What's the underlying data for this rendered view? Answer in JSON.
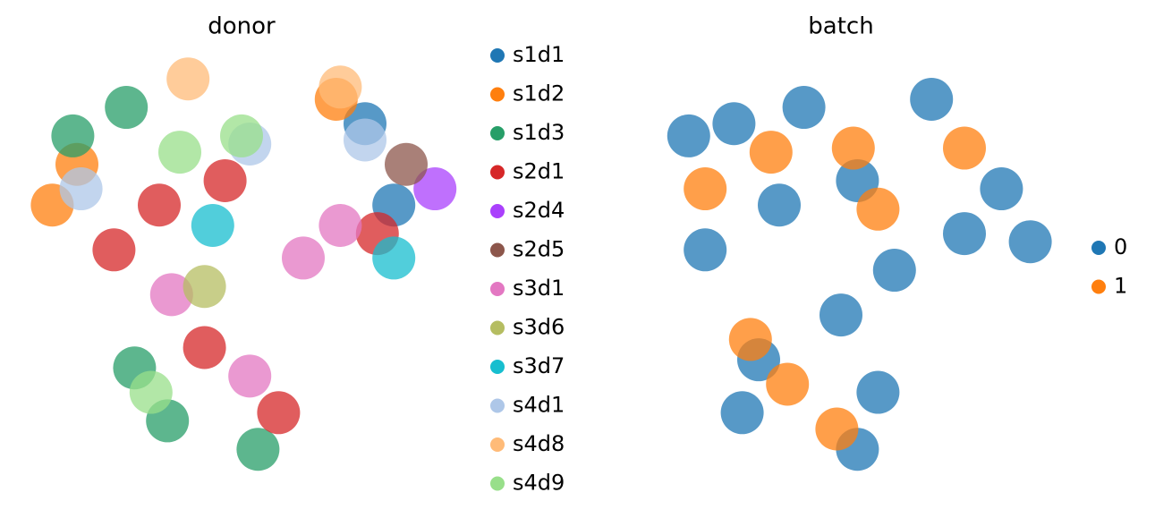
{
  "chart_data": [
    {
      "type": "scatter",
      "title": "donor",
      "xlim": [
        0,
        100
      ],
      "ylim": [
        0,
        100
      ],
      "series": [
        {
          "name": "s1d1",
          "color": "#1f77b4",
          "x": [
            80,
            87
          ],
          "values": [
            85,
            65
          ]
        },
        {
          "name": "s1d2",
          "color": "#ff7f0e",
          "x": [
            4,
            73,
            10
          ],
          "values": [
            65,
            91,
            75
          ]
        },
        {
          "name": "s1d3",
          "color": "#279e68",
          "x": [
            9,
            22,
            54,
            24,
            32
          ],
          "values": [
            82,
            89,
            5,
            25,
            12
          ]
        },
        {
          "name": "s2d1",
          "color": "#d62728",
          "x": [
            19,
            46,
            59,
            83,
            41,
            30
          ],
          "values": [
            54,
            71,
            14,
            58,
            30,
            65
          ]
        },
        {
          "name": "s2d4",
          "color": "#aa40fc",
          "x": [
            97
          ],
          "values": [
            69
          ]
        },
        {
          "name": "s2d5",
          "color": "#8c564b",
          "x": [
            90
          ],
          "values": [
            75
          ]
        },
        {
          "name": "s3d1",
          "color": "#e377c2",
          "x": [
            74,
            33,
            52,
            65
          ],
          "values": [
            60,
            43,
            23,
            52
          ]
        },
        {
          "name": "s3d6",
          "color": "#b5bd61",
          "x": [
            41
          ],
          "values": [
            45
          ]
        },
        {
          "name": "s3d7",
          "color": "#17becf",
          "x": [
            87,
            43
          ],
          "values": [
            52,
            60
          ]
        },
        {
          "name": "s4d1",
          "color": "#aec7e8",
          "x": [
            11,
            52,
            80
          ],
          "values": [
            69,
            80,
            81
          ]
        },
        {
          "name": "s4d8",
          "color": "#ffbb78",
          "x": [
            37,
            74
          ],
          "values": [
            96,
            94
          ]
        },
        {
          "name": "s4d9",
          "color": "#98df8a",
          "x": [
            35,
            50,
            28
          ],
          "values": [
            78,
            82,
            19
          ]
        }
      ]
    },
    {
      "type": "scatter",
      "title": "batch",
      "xlim": [
        0,
        100
      ],
      "ylim": [
        0,
        100
      ],
      "series": [
        {
          "name": "0",
          "color": "#1f77b4",
          "x": [
            13,
            24,
            17,
            35,
            54,
            80,
            89,
            63,
            30,
            59,
            54,
            26,
            41,
            72,
            50,
            96
          ],
          "values": [
            82,
            85,
            54,
            65,
            71,
            58,
            69,
            49,
            27,
            19,
            5,
            14,
            89,
            91,
            38,
            56
          ]
        },
        {
          "name": "1",
          "color": "#ff7f0e",
          "x": [
            17,
            33,
            53,
            80,
            59,
            37,
            49,
            28
          ],
          "values": [
            69,
            78,
            79,
            79,
            64,
            21,
            10,
            32
          ]
        }
      ]
    }
  ]
}
